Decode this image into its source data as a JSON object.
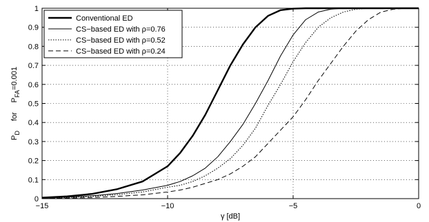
{
  "chart_data": {
    "type": "line",
    "xlabel": "γ [dB]",
    "ylabel": "P_D  for  P_FA=0.001",
    "ylabel_parts": {
      "main": "P",
      "main_sub": "D",
      "for": "for",
      "cond": "P",
      "cond_sub": "FA",
      "cond_value": "=0.001"
    },
    "xlim": [
      -15,
      0
    ],
    "ylim": [
      0,
      1
    ],
    "grid": true,
    "legend_position": "top-left",
    "x_ticks": [
      -15,
      -10,
      -5,
      0
    ],
    "x_tick_labels": [
      "−15",
      "−10",
      "−5",
      "0"
    ],
    "y_ticks": [
      0,
      0.1,
      0.2,
      0.3,
      0.4,
      0.5,
      0.6,
      0.7,
      0.8,
      0.9,
      1
    ],
    "y_tick_labels": [
      "0",
      "0.1",
      "0.2",
      "0.3",
      "0.4",
      "0.5",
      "0.6",
      "0.7",
      "0.8",
      "0.9",
      "1"
    ],
    "x": [
      -15,
      -14,
      -13,
      -12,
      -11,
      -10,
      -9.5,
      -9,
      -8.5,
      -8,
      -7.5,
      -7,
      -6.5,
      -6,
      -5.5,
      -5,
      -4.5,
      -4,
      -3.5,
      -3,
      -2.5,
      -2,
      -1.5,
      -1,
      -0.5,
      0
    ],
    "series": [
      {
        "name": "Conventional ED",
        "style": "solid-bold",
        "values": [
          0.005,
          0.012,
          0.025,
          0.05,
          0.09,
          0.17,
          0.24,
          0.33,
          0.44,
          0.57,
          0.7,
          0.81,
          0.9,
          0.96,
          0.99,
          0.998,
          1,
          1,
          1,
          1,
          1,
          1,
          1,
          1,
          1,
          1
        ]
      },
      {
        "name": "CS−based ED with ρ=0.76",
        "style": "solid-thin",
        "values": [
          0.003,
          0.008,
          0.015,
          0.027,
          0.045,
          0.07,
          0.09,
          0.12,
          0.16,
          0.22,
          0.3,
          0.39,
          0.5,
          0.62,
          0.75,
          0.86,
          0.94,
          0.98,
          0.995,
          1,
          1,
          1,
          1,
          1,
          1,
          1
        ]
      },
      {
        "name": "CS−based ED with ρ=0.52",
        "style": "dotted",
        "values": [
          0.002,
          0.006,
          0.012,
          0.021,
          0.035,
          0.06,
          0.07,
          0.09,
          0.12,
          0.16,
          0.21,
          0.28,
          0.37,
          0.49,
          0.6,
          0.72,
          0.82,
          0.9,
          0.95,
          0.98,
          0.995,
          1,
          1,
          1,
          1,
          1
        ]
      },
      {
        "name": "CS−based ED with ρ=0.24",
        "style": "dashed",
        "values": [
          0.001,
          0.003,
          0.006,
          0.012,
          0.02,
          0.035,
          0.045,
          0.06,
          0.08,
          0.1,
          0.13,
          0.17,
          0.22,
          0.29,
          0.36,
          0.43,
          0.52,
          0.62,
          0.71,
          0.8,
          0.88,
          0.94,
          0.98,
          0.995,
          1,
          1
        ]
      }
    ]
  }
}
